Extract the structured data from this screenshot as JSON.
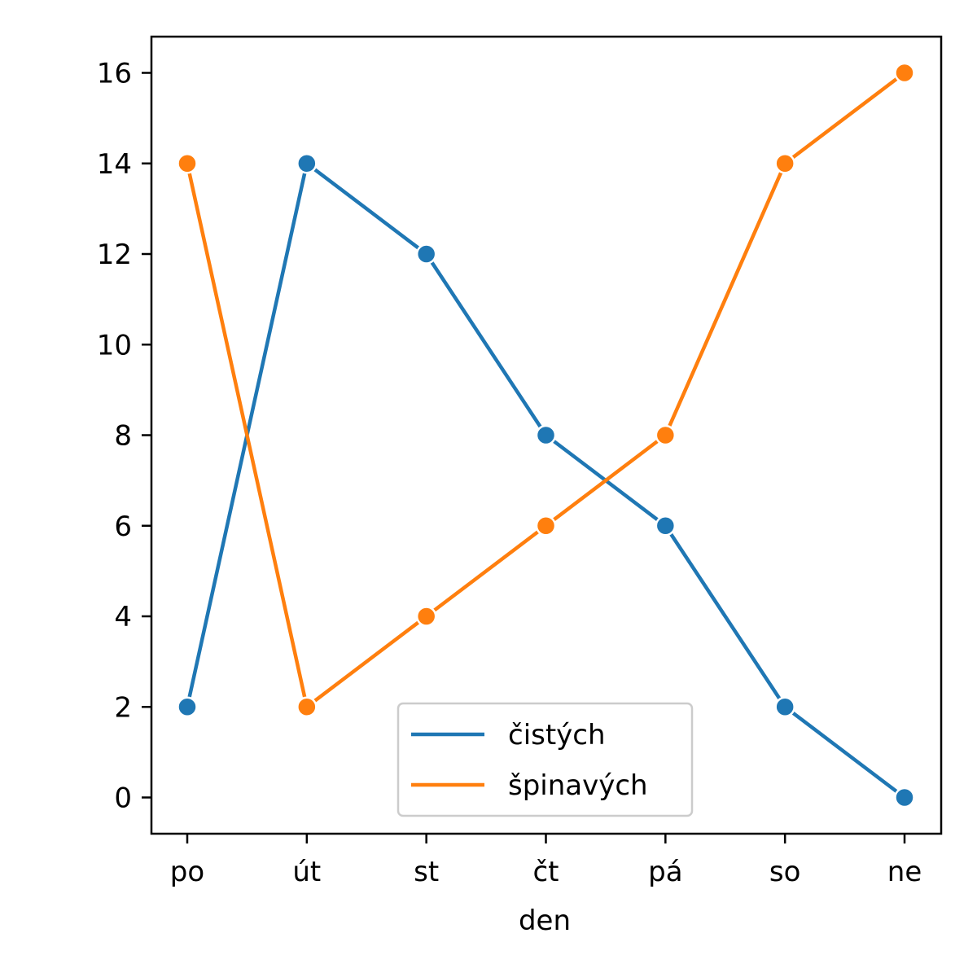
{
  "chart_data": {
    "type": "line",
    "title": "",
    "xlabel": "den",
    "ylabel": "",
    "categories": [
      "po",
      "út",
      "st",
      "čt",
      "pá",
      "so",
      "ne"
    ],
    "y_ticks": [
      0,
      2,
      4,
      6,
      8,
      10,
      12,
      14,
      16
    ],
    "ylim": [
      -0.8,
      16.8
    ],
    "grid": false,
    "legend_position": "bottom-center",
    "series": [
      {
        "name": "čistých",
        "color": "#1f77b4",
        "values": [
          2,
          14,
          12,
          8,
          6,
          2,
          0
        ]
      },
      {
        "name": "špinavých",
        "color": "#ff7f0e",
        "values": [
          14,
          2,
          4,
          6,
          8,
          14,
          16
        ]
      }
    ]
  }
}
